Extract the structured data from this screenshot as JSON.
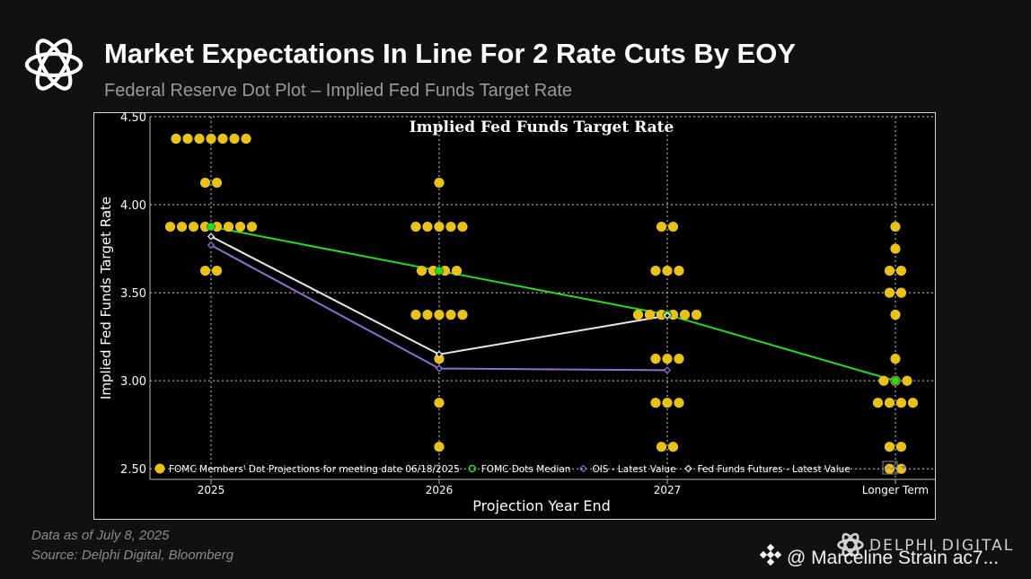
{
  "header": {
    "title": "Market Expectations In Line For 2 Rate Cuts By EOY",
    "subtitle": "Federal Reserve Dot Plot – Implied Fed Funds Target Rate"
  },
  "footer": {
    "as_of": "Data as of July 8, 2025",
    "source": "Source:  Delphi Digital, Bloomberg"
  },
  "brand": {
    "name": "DELPHI DIGITAL",
    "watermark": "@ Marceline Strain ac7..."
  },
  "colors": {
    "dots": "#e8c21a",
    "median": "#22dd22",
    "ois": "#8a70d0",
    "futures": "#e8e8e8",
    "grid": "#cfcfcf"
  },
  "chart_data": {
    "type": "scatter",
    "title": "Implied Fed Funds Target Rate",
    "xlabel": "Projection Year End",
    "ylabel": "Implied Fed Funds Target Rate",
    "categories": [
      "2025",
      "2026",
      "2027",
      "Longer Term"
    ],
    "yticks": [
      "4.50",
      "4.00",
      "3.50",
      "3.00",
      "2.50"
    ],
    "ylim": [
      2.44,
      4.5
    ],
    "grid": true,
    "legend_position": "bottom",
    "dot_projections": {
      "name": "FOMC Members' Dot Projections for meeting date 06/18/2025",
      "groups": [
        {
          "category": "2025",
          "levels": [
            {
              "rate": 4.375,
              "count": 7
            },
            {
              "rate": 4.125,
              "count": 2
            },
            {
              "rate": 3.875,
              "count": 8
            },
            {
              "rate": 3.625,
              "count": 2
            }
          ]
        },
        {
          "category": "2026",
          "levels": [
            {
              "rate": 4.125,
              "count": 1
            },
            {
              "rate": 3.875,
              "count": 5
            },
            {
              "rate": 3.625,
              "count": 4
            },
            {
              "rate": 3.375,
              "count": 5
            },
            {
              "rate": 3.125,
              "count": 1
            },
            {
              "rate": 2.875,
              "count": 1
            },
            {
              "rate": 2.625,
              "count": 1
            }
          ]
        },
        {
          "category": "2027",
          "levels": [
            {
              "rate": 3.875,
              "count": 2
            },
            {
              "rate": 3.625,
              "count": 3
            },
            {
              "rate": 3.375,
              "count": 6
            },
            {
              "rate": 3.125,
              "count": 3
            },
            {
              "rate": 2.875,
              "count": 3
            },
            {
              "rate": 2.625,
              "count": 2
            }
          ]
        },
        {
          "category": "Longer Term",
          "levels": [
            {
              "rate": 3.875,
              "count": 1
            },
            {
              "rate": 3.75,
              "count": 1
            },
            {
              "rate": 3.625,
              "count": 2
            },
            {
              "rate": 3.5,
              "count": 2
            },
            {
              "rate": 3.375,
              "count": 1
            },
            {
              "rate": 3.125,
              "count": 1
            },
            {
              "rate": 3.0,
              "count": 3
            },
            {
              "rate": 2.875,
              "count": 4
            },
            {
              "rate": 2.625,
              "count": 2
            },
            {
              "rate": 2.5,
              "count": 2
            }
          ]
        }
      ]
    },
    "series": [
      {
        "name": "FOMC Dots Median",
        "categories": [
          "2025",
          "2026",
          "2027",
          "Longer Term"
        ],
        "values": [
          3.875,
          3.625,
          3.375,
          3.0
        ]
      },
      {
        "name": "OIS - Latest Value",
        "categories": [
          "2025",
          "2026",
          "2027"
        ],
        "values": [
          3.77,
          3.07,
          3.06
        ]
      },
      {
        "name": "Fed Funds Futures - Latest Value",
        "categories": [
          "2025",
          "2026",
          "2027"
        ],
        "values": [
          3.82,
          3.15,
          3.37
        ]
      }
    ]
  }
}
